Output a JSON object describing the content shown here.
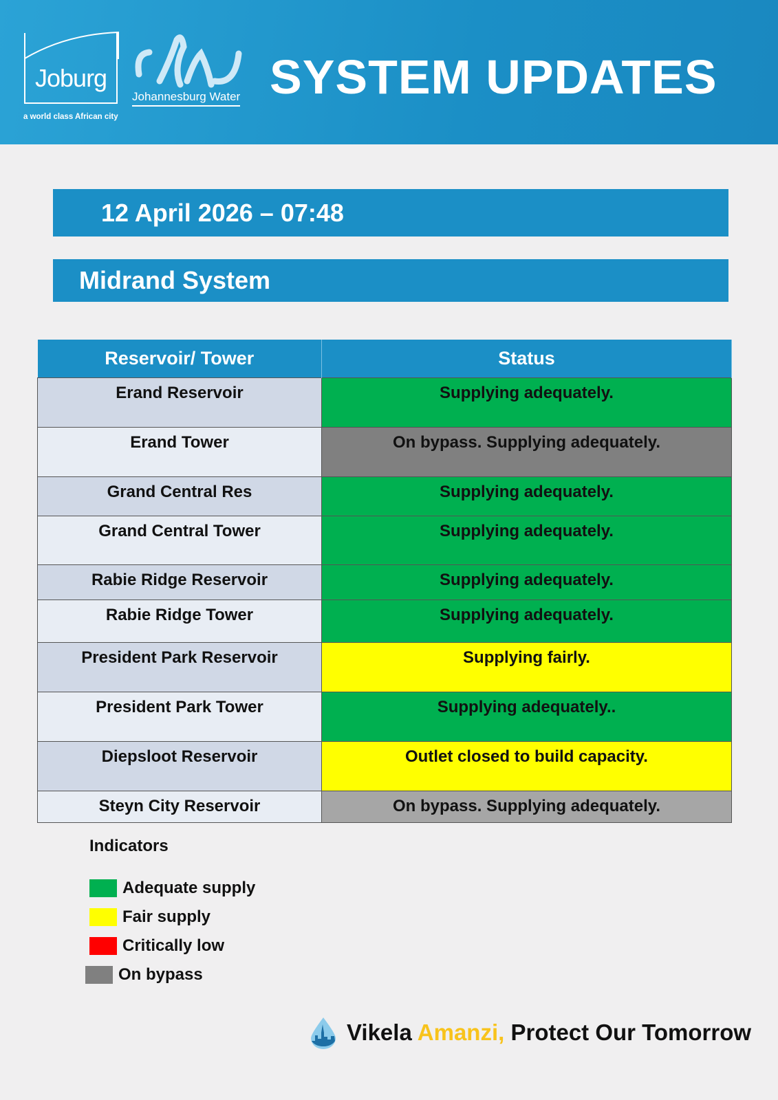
{
  "header": {
    "logo_text": "Joburg",
    "tagline": "a world class African city",
    "water_logo_text": "Johannesburg Water",
    "title": "SYSTEM UPDATES"
  },
  "date_banner": "12 April 2026 – 07:48",
  "system_banner": "Midrand System",
  "table": {
    "headers": [
      "Reservoir/ Tower",
      "Status"
    ],
    "rows": [
      {
        "name": "Erand Reservoir",
        "status": "Supplying adequately.",
        "color": "#00b050"
      },
      {
        "name": "Erand Tower",
        "status": "On bypass. Supplying adequately.",
        "color": "#808080"
      },
      {
        "name": "Grand Central Res",
        "status": "Supplying adequately.",
        "color": "#00b050"
      },
      {
        "name": "Grand Central Tower",
        "status": "Supplying adequately.",
        "color": "#00b050"
      },
      {
        "name": "Rabie Ridge Reservoir",
        "status": "Supplying adequately.",
        "color": "#00b050"
      },
      {
        "name": "Rabie Ridge Tower",
        "status": "Supplying adequately.",
        "color": "#00b050"
      },
      {
        "name": "President Park Reservoir",
        "status": "Supplying fairly.",
        "color": "#ffff00"
      },
      {
        "name": "President Park Tower",
        "status": "Supplying adequately..",
        "color": "#00b050"
      },
      {
        "name": "Diepsloot Reservoir",
        "status": "Outlet closed to build capacity.",
        "color": "#ffff00"
      },
      {
        "name": "Steyn City Reservoir",
        "status": "On bypass. Supplying adequately.",
        "color": "#a6a6a6"
      }
    ]
  },
  "legend": {
    "title": "Indicators",
    "items": [
      {
        "label": "Adequate supply",
        "color": "#00b050"
      },
      {
        "label": "Fair supply",
        "color": "#ffff00"
      },
      {
        "label": "Critically low",
        "color": "#ff0000"
      },
      {
        "label": "On bypass",
        "color": "#808080"
      }
    ]
  },
  "footer": {
    "part1": "Vikela ",
    "part2": "Amanzi,",
    "part3": " Protect Our Tomorrow",
    "icon": "water-drop-city-icon"
  }
}
